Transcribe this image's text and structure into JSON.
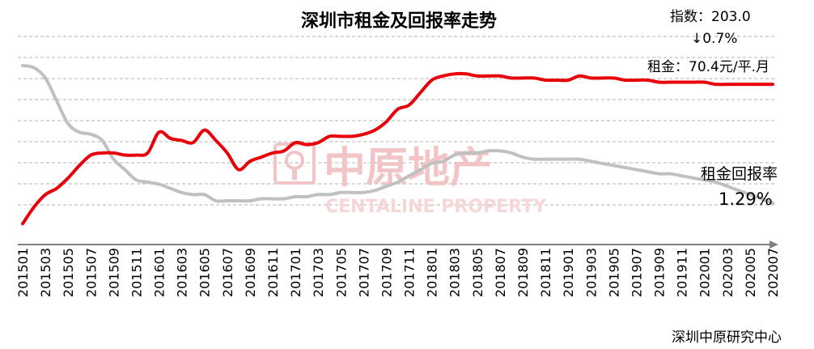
{
  "title": "深圳市租金及回报率走势",
  "annotations": {
    "index": "指数：203.0",
    "change": "↓0.7%",
    "rent": "租金：70.4元/平.月",
    "yield_label": "租金回报率",
    "yield_value": "1.29%"
  },
  "watermark": {
    "cn": "中原地产",
    "en": "CENTALINE PROPERTY"
  },
  "source": "深圳中原研究中心",
  "colors": {
    "rent_series": "#e8000b",
    "yield_series": "#c0c0c0",
    "grid": "#b0b0b0",
    "axis": "#808080",
    "watermark": "#f3c4c6"
  },
  "chart_data": {
    "type": "line",
    "x": [
      "201501",
      "201502",
      "201503",
      "201504",
      "201505",
      "201506",
      "201507",
      "201508",
      "201509",
      "201510",
      "201511",
      "201512",
      "201601",
      "201602",
      "201603",
      "201604",
      "201605",
      "201606",
      "201607",
      "201608",
      "201609",
      "201610",
      "201611",
      "201612",
      "201701",
      "201702",
      "201703",
      "201704",
      "201705",
      "201706",
      "201707",
      "201708",
      "201709",
      "201710",
      "201711",
      "201712",
      "201801",
      "201802",
      "201803",
      "201804",
      "201805",
      "201806",
      "201807",
      "201808",
      "201809",
      "201810",
      "201811",
      "201812",
      "201901",
      "201902",
      "201903",
      "201904",
      "201905",
      "201906",
      "201907",
      "201908",
      "201909",
      "201910",
      "201911",
      "201912",
      "202001",
      "202002",
      "202003",
      "202004",
      "202005",
      "202006",
      "202007"
    ],
    "tick_labels": [
      "201501",
      "201503",
      "201505",
      "201507",
      "201509",
      "201511",
      "201601",
      "201603",
      "201605",
      "201607",
      "201609",
      "201611",
      "201701",
      "201703",
      "201705",
      "201707",
      "201709",
      "201711",
      "201801",
      "201803",
      "201805",
      "201807",
      "201809",
      "201811",
      "201901",
      "201903",
      "201905",
      "201907",
      "201909",
      "201911",
      "202001",
      "202003",
      "202005",
      "202007"
    ],
    "series": [
      {
        "name": "",
        "values": [
          0.0,
          0.8,
          1.4,
          1.7,
          2.2,
          2.8,
          3.3,
          3.4,
          3.4,
          3.3,
          3.3,
          3.4,
          4.4,
          4.1,
          4.0,
          3.9,
          4.5,
          4.0,
          3.4,
          2.6,
          3.0,
          3.2,
          3.4,
          3.5,
          3.9,
          3.8,
          3.9,
          4.2,
          4.2,
          4.2,
          4.3,
          4.5,
          4.9,
          5.5,
          5.7,
          6.3,
          6.9,
          7.1,
          7.2,
          7.2,
          7.1,
          7.1,
          7.1,
          7.0,
          7.0,
          7.0,
          6.9,
          6.9,
          6.9,
          7.1,
          7.0,
          7.0,
          7.0,
          6.9,
          6.9,
          6.9,
          6.8,
          6.8,
          6.8,
          6.8,
          6.8,
          6.7,
          6.7,
          6.7,
          6.7,
          6.7,
          6.7
        ]
      },
      {
        "name": "租金回报率",
        "values": [
          7.6,
          7.5,
          7.0,
          5.9,
          4.8,
          4.4,
          4.3,
          4.0,
          3.1,
          2.6,
          2.1,
          2.0,
          1.9,
          1.7,
          1.5,
          1.4,
          1.4,
          1.1,
          1.1,
          1.1,
          1.1,
          1.2,
          1.2,
          1.2,
          1.3,
          1.3,
          1.4,
          1.4,
          1.5,
          1.5,
          1.5,
          1.6,
          1.8,
          2.0,
          2.3,
          2.6,
          2.9,
          3.0,
          3.3,
          3.4,
          3.4,
          3.5,
          3.5,
          3.4,
          3.2,
          3.1,
          3.1,
          3.1,
          3.1,
          3.1,
          3.0,
          2.9,
          2.8,
          2.7,
          2.6,
          2.5,
          2.4,
          2.4,
          2.3,
          2.2,
          2.1,
          2.0,
          1.8,
          1.6,
          1.4,
          1.2,
          1.0
        ]
      }
    ],
    "ylim": [
      -1,
      9
    ],
    "grid": "horizontal dashed",
    "xlabel": "",
    "ylabel": ""
  }
}
